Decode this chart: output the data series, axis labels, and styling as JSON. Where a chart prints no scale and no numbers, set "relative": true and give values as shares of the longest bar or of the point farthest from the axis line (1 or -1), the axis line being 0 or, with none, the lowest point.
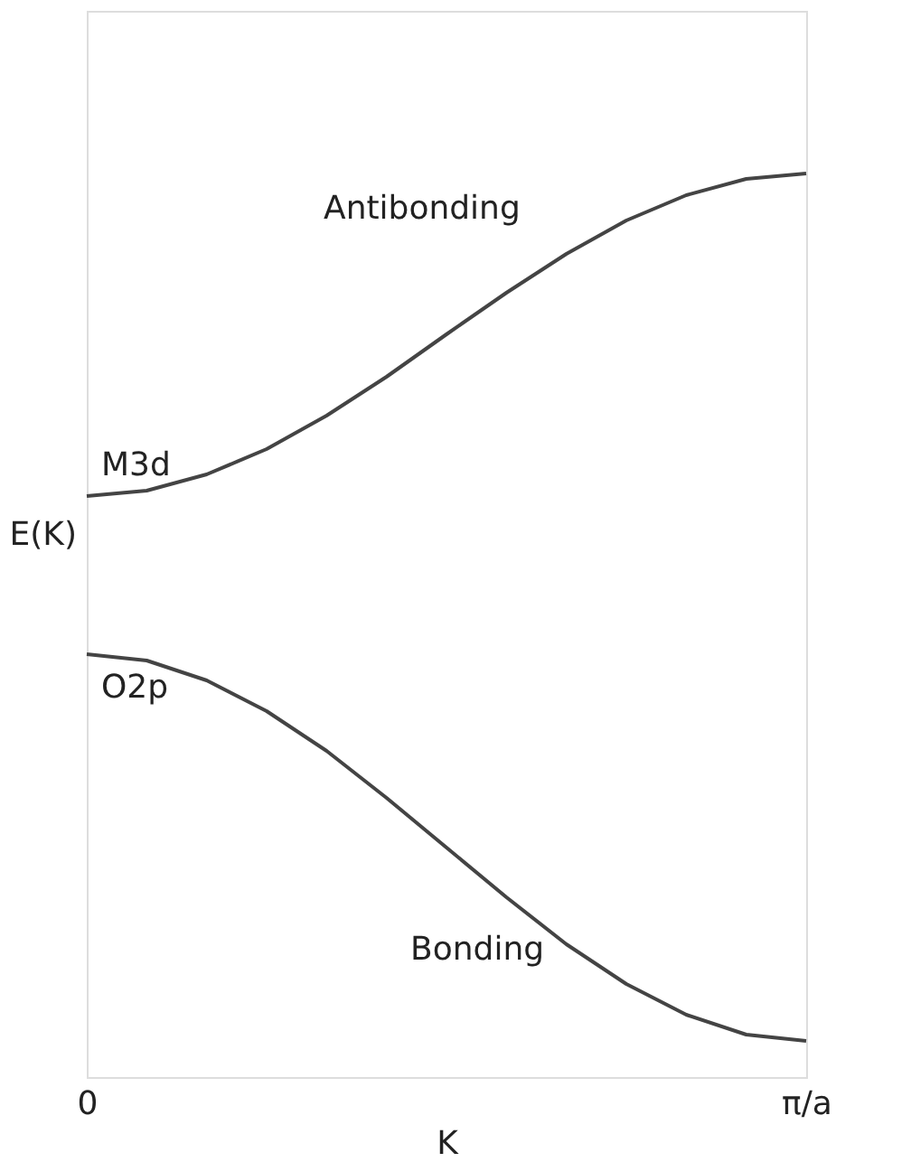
{
  "chart_data": {
    "type": "line",
    "relative": true,
    "xlabel": "K",
    "ylabel": "E(K)",
    "categories": [
      "0",
      null,
      null,
      null,
      null,
      null,
      null,
      null,
      null,
      null,
      null,
      null,
      "π/a"
    ],
    "series": [
      {
        "color": "#444444",
        "values": [
          0.643,
          0.649,
          0.667,
          0.695,
          0.732,
          0.775,
          0.822,
          0.868,
          0.911,
          0.948,
          0.976,
          0.994,
          1.0
        ]
      },
      {
        "color": "#444444",
        "values": [
          0.468,
          0.461,
          0.439,
          0.405,
          0.361,
          0.309,
          0.254,
          0.199,
          0.147,
          0.103,
          0.069,
          0.047,
          0.04
        ]
      }
    ],
    "annotations": [
      "Antibonding",
      "M3d",
      "O2p",
      "Bonding"
    ],
    "grid": false,
    "marker": "none",
    "line_style": "solid"
  }
}
